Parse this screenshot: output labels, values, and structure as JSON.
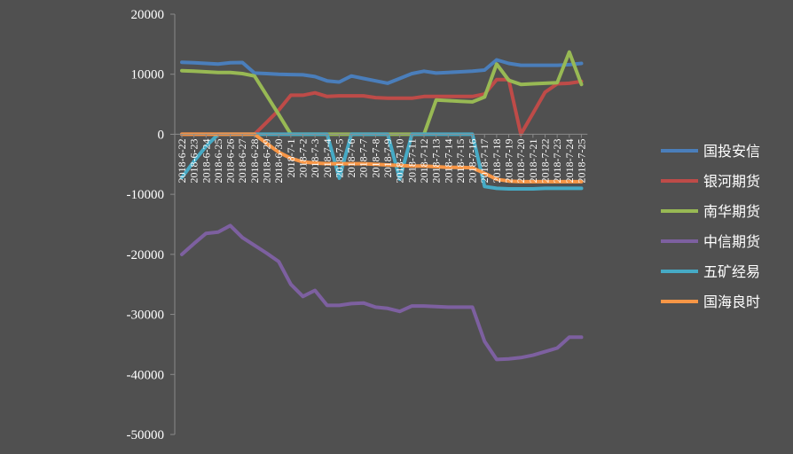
{
  "chart_data": {
    "type": "line",
    "title": "",
    "xlabel": "",
    "ylabel": "",
    "ylim": [
      -50000,
      20000
    ],
    "yticks": [
      20000,
      10000,
      0,
      -10000,
      -20000,
      -30000,
      -40000,
      -50000
    ],
    "ytick_labels": [
      "20000",
      "10000",
      "0",
      "-10000",
      "-20000",
      "-30000",
      "-40000",
      "-50000"
    ],
    "grid": false,
    "legend_position": "right",
    "categories": [
      "2018-6-22",
      "2018-6-23",
      "2018-6-24",
      "2018-6-25",
      "2018-6-26",
      "2018-6-27",
      "2018-6-28",
      "2018-6-29",
      "2018-6-30",
      "2018-7-1",
      "2018-7-2",
      "2018-7-3",
      "2018-7-4",
      "2018-7-5",
      "2018-7-6",
      "2018-7-7",
      "2018-7-8",
      "2018-7-9",
      "2018-7-10",
      "2018-7-11",
      "2018-7-12",
      "2018-7-13",
      "2018-7-14",
      "2018-7-15",
      "2018-7-16",
      "2018-7-17",
      "2018-7-18",
      "2018-7-19",
      "2018-7-20",
      "2018-7-21",
      "2018-7-22",
      "2018-7-23",
      "2018-7-24",
      "2018-7-25"
    ],
    "series": [
      {
        "name": "国投安信",
        "color": "#4a7ebb",
        "values": [
          12000,
          11900,
          11800,
          11700,
          11900,
          11950,
          10200,
          10100,
          10000,
          9950,
          9900,
          9600,
          8900,
          8700,
          9700,
          9300,
          8900,
          8500,
          9300,
          10100,
          10500,
          10200,
          10300,
          10400,
          10500,
          10700,
          12400,
          11800,
          11500,
          11500,
          11500,
          11500,
          11600,
          11800
        ]
      },
      {
        "name": "银河期货",
        "color": "#be4b48",
        "values": [
          0,
          0,
          0,
          0,
          0,
          0,
          0,
          2000,
          4000,
          6500,
          6500,
          6900,
          6300,
          6400,
          6400,
          6400,
          6100,
          6000,
          6000,
          6000,
          6300,
          6300,
          6300,
          6300,
          6300,
          6700,
          9100,
          9100,
          0,
          3500,
          7000,
          8400,
          8500,
          8800
        ]
      },
      {
        "name": "南华期货",
        "color": "#98b954",
        "values": [
          10600,
          10500,
          10400,
          10300,
          10300,
          10100,
          9700,
          6500,
          3300,
          0,
          0,
          0,
          0,
          0,
          0,
          0,
          0,
          0,
          0,
          0,
          0,
          5700,
          5600,
          5500,
          5400,
          6200,
          11700,
          9000,
          8300,
          8400,
          8500,
          8600,
          13700,
          8300
        ]
      },
      {
        "name": "中信期货",
        "color": "#7d60a0",
        "values": [
          -20000,
          -18200,
          -16500,
          -16300,
          -15200,
          -17200,
          -18500,
          -19800,
          -21200,
          -25000,
          -27000,
          -26000,
          -28500,
          -28500,
          -28200,
          -28100,
          -28800,
          -29000,
          -29500,
          -28600,
          -28600,
          -28700,
          -28800,
          -28800,
          -28800,
          -34500,
          -37500,
          -37400,
          -37200,
          -36800,
          -36200,
          -35600,
          -33800,
          -33800
        ]
      },
      {
        "name": "五矿经易",
        "color": "#46aac5",
        "values": [
          -7200,
          -4500,
          -2000,
          0,
          0,
          0,
          0,
          0,
          0,
          0,
          0,
          0,
          0,
          -7300,
          0,
          0,
          0,
          0,
          -7500,
          0,
          0,
          0,
          0,
          0,
          0,
          -8700,
          -9000,
          -9100,
          -9100,
          -9100,
          -9000,
          -9000,
          -9000,
          -9000
        ]
      },
      {
        "name": "国海良时",
        "color": "#f79646",
        "values": [
          0,
          0,
          0,
          0,
          0,
          0,
          0,
          -1500,
          -3000,
          -4000,
          -4600,
          -4800,
          -4900,
          -4900,
          -4900,
          -4900,
          -5000,
          -5100,
          -5200,
          -5300,
          -5300,
          -5400,
          -5500,
          -5500,
          -5600,
          -6500,
          -7500,
          -7800,
          -7900,
          -7900,
          -7900,
          -7900,
          -7900,
          -7900
        ]
      }
    ]
  }
}
